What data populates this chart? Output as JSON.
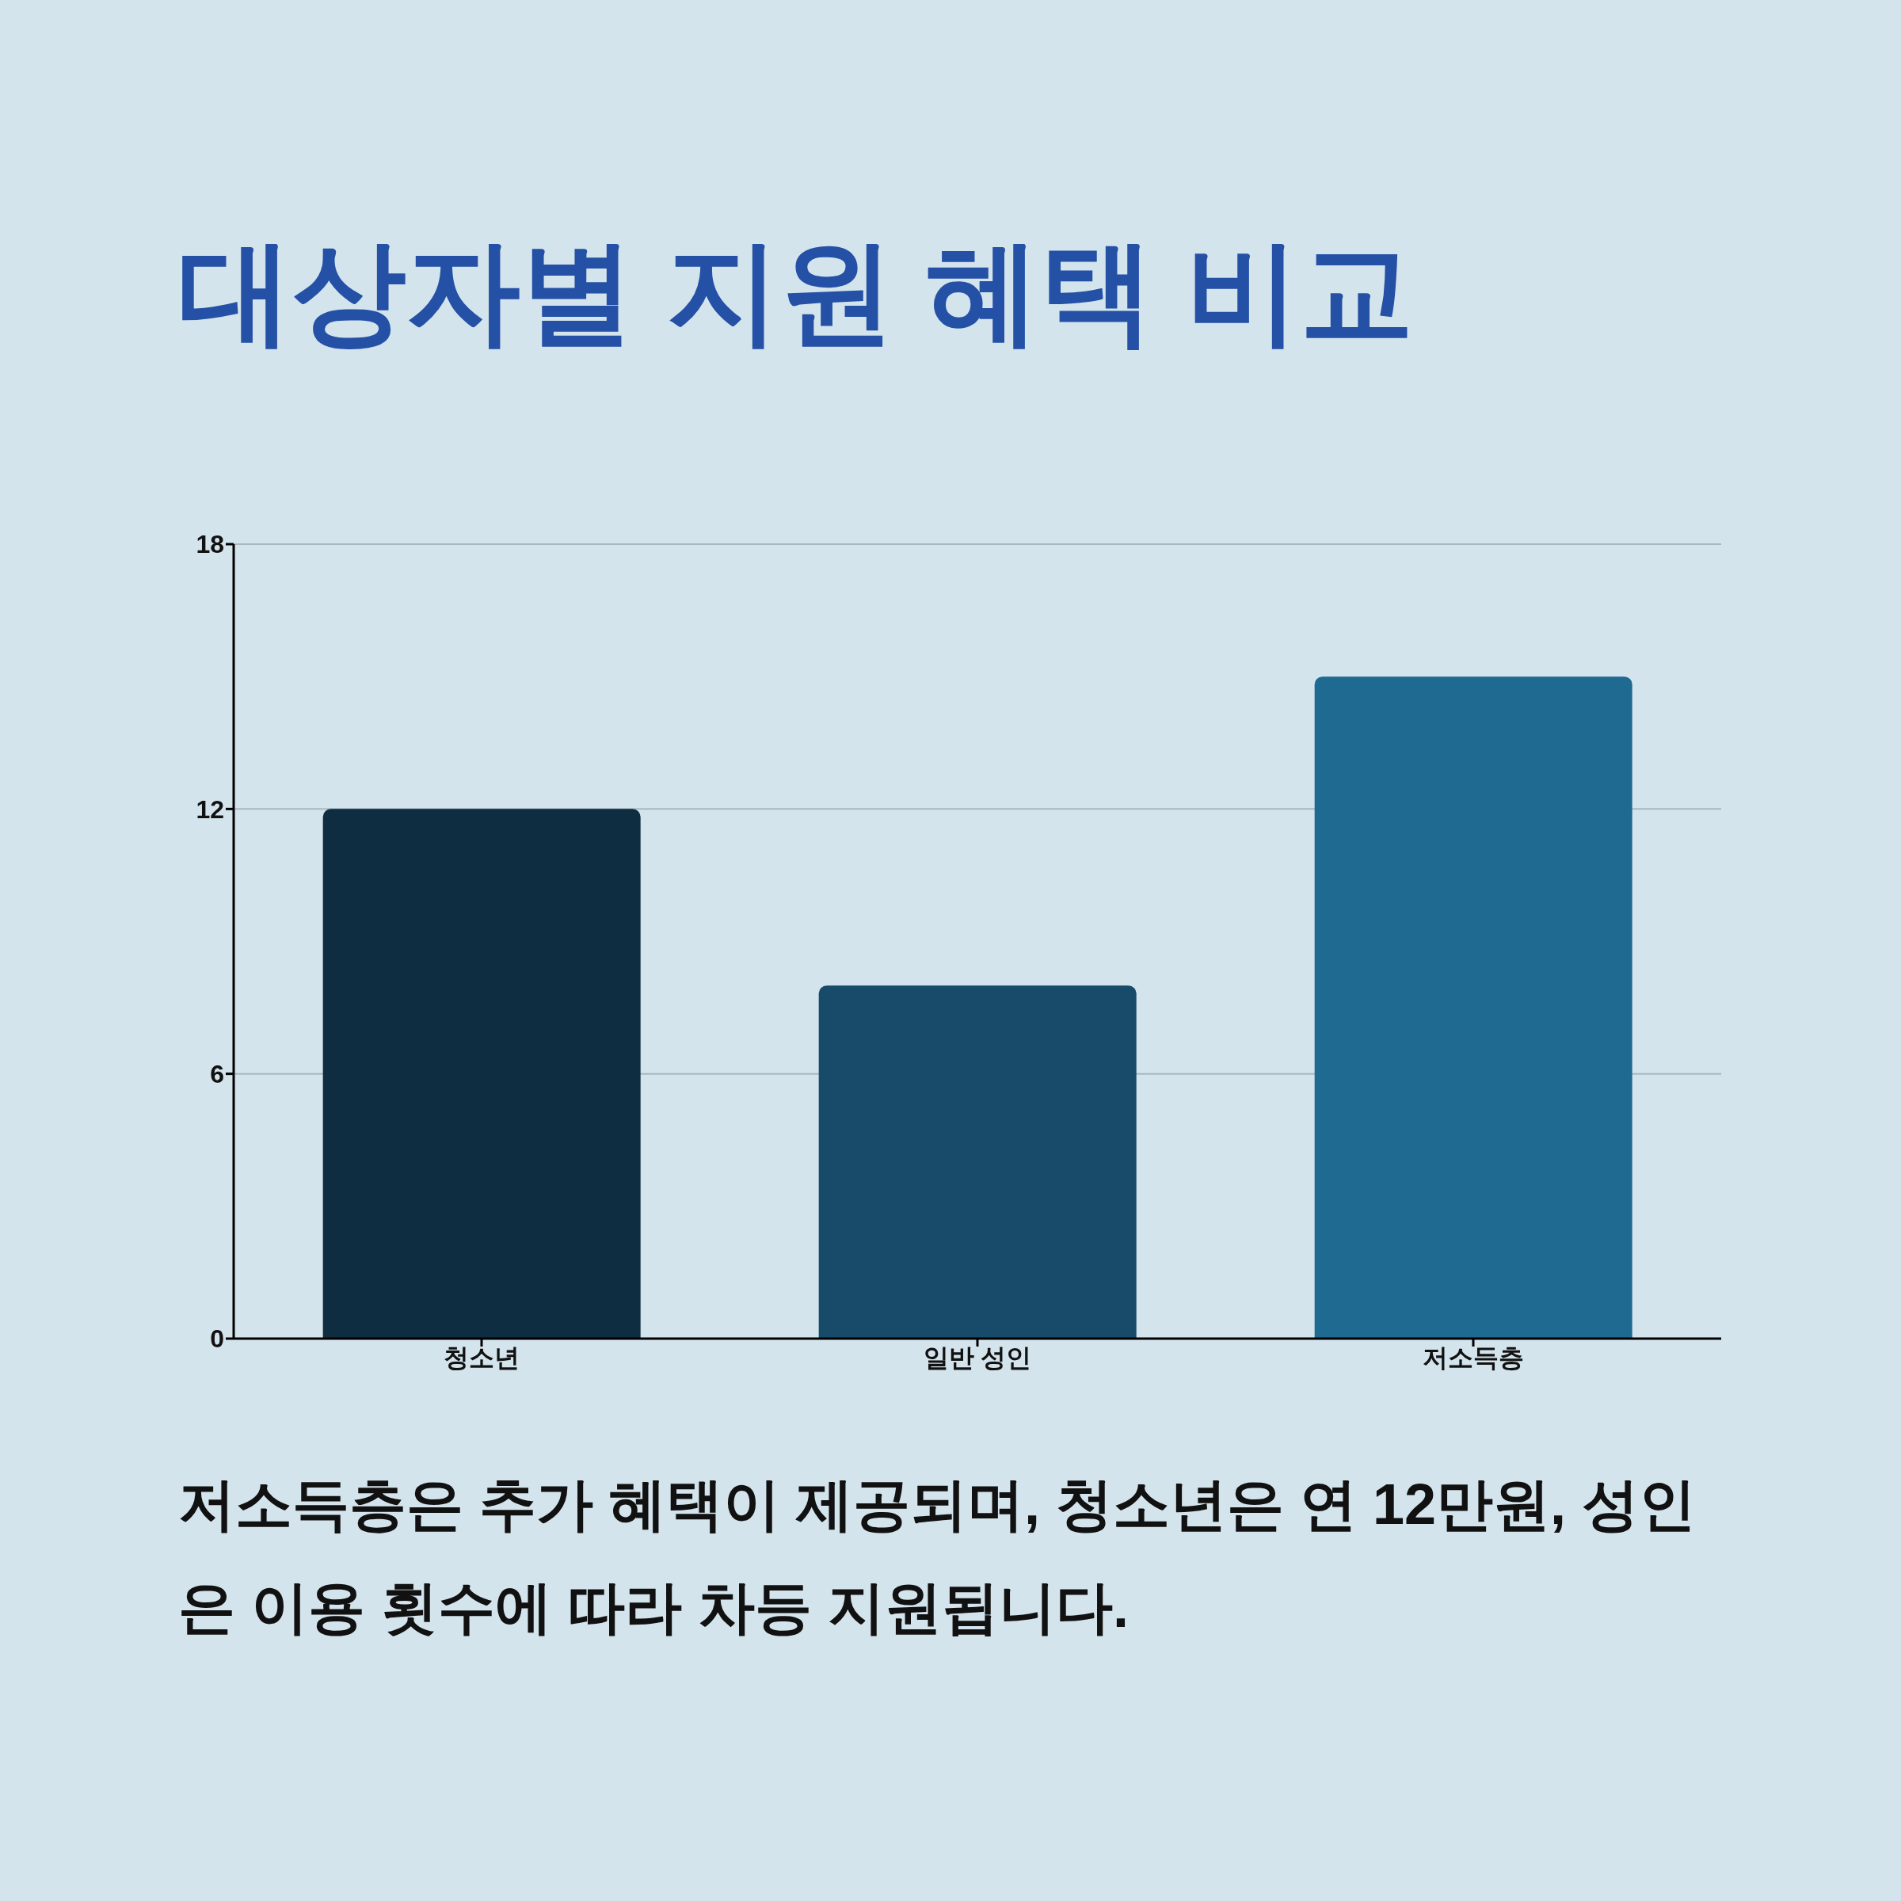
{
  "chart_data": {
    "type": "bar",
    "title": "대상자별 지원 혜택 비교",
    "categories": [
      "청소년",
      "일반 성인",
      "저소득층"
    ],
    "values": [
      12,
      8,
      15
    ],
    "colors": [
      "#0e2d40",
      "#174b69",
      "#1f6a90"
    ],
    "ylim": [
      0,
      18
    ],
    "yticks": [
      0,
      6,
      12,
      18
    ],
    "grid": "y",
    "annotations": [
      "저소득층은 추가 혜택이 제공되며, 청소년은 연 12만원, 성인은 이용 횟수에 따라 차등 지원됩니다."
    ]
  }
}
